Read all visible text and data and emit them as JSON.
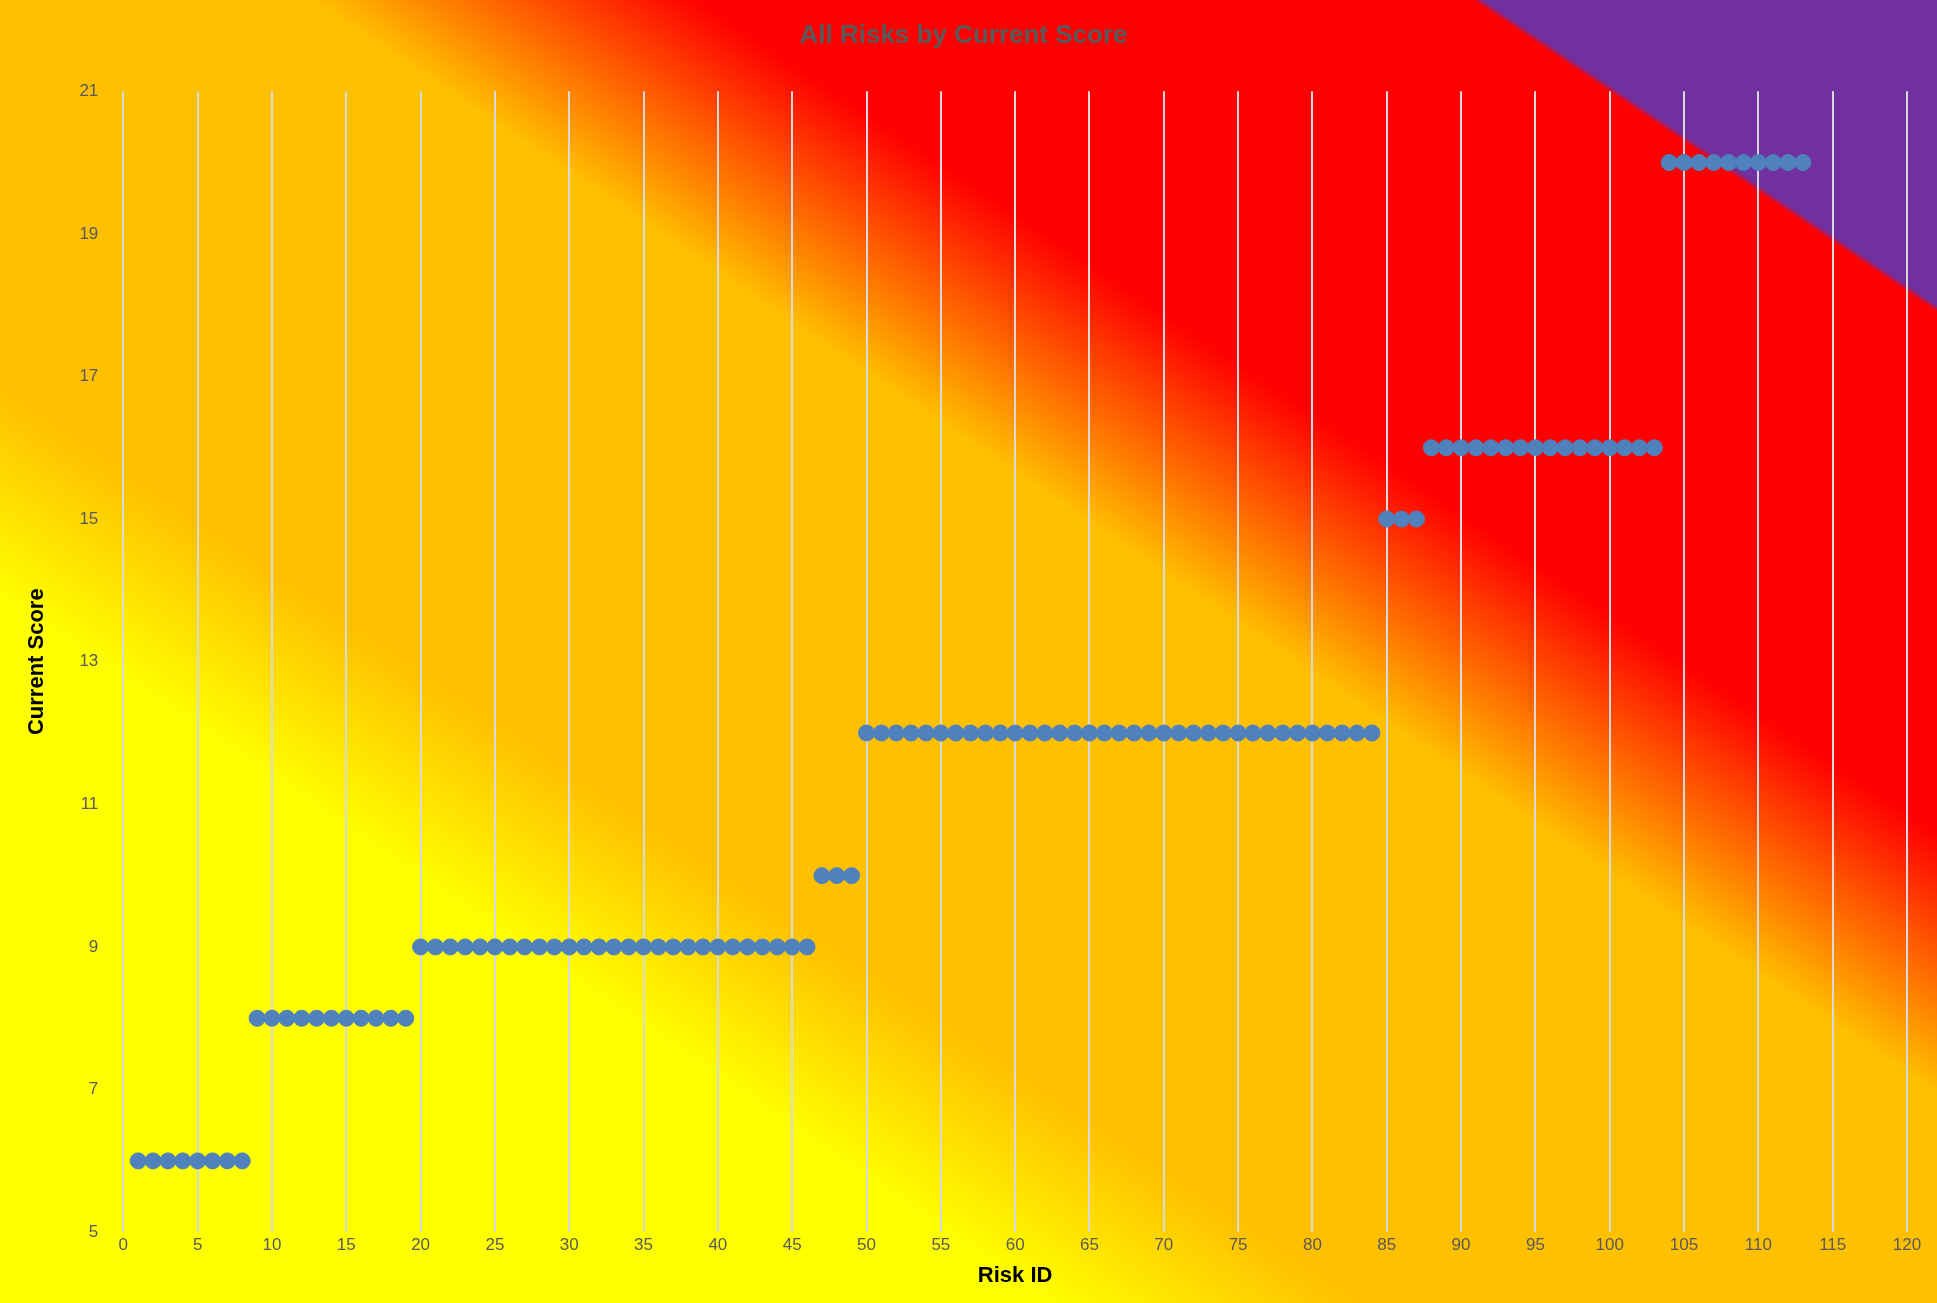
{
  "chart_data": {
    "type": "scatter",
    "title": "All Risks by Current Score",
    "xlabel": "Risk ID",
    "ylabel": "Current Score",
    "x": [
      1,
      2,
      3,
      4,
      5,
      6,
      7,
      8,
      9,
      10,
      11,
      12,
      13,
      14,
      15,
      16,
      17,
      18,
      19,
      20,
      21,
      22,
      23,
      24,
      25,
      26,
      27,
      28,
      29,
      30,
      31,
      32,
      33,
      34,
      35,
      36,
      37,
      38,
      39,
      40,
      41,
      42,
      43,
      44,
      45,
      46,
      47,
      48,
      49,
      50,
      51,
      52,
      53,
      54,
      55,
      56,
      57,
      58,
      59,
      60,
      61,
      62,
      63,
      64,
      65,
      66,
      67,
      68,
      69,
      70,
      71,
      72,
      73,
      74,
      75,
      76,
      77,
      78,
      79,
      80,
      81,
      82,
      83,
      84,
      85,
      86,
      87,
      88,
      89,
      90,
      91,
      92,
      93,
      94,
      95,
      96,
      97,
      98,
      99,
      100,
      101,
      102,
      103,
      104,
      105,
      106,
      107,
      108,
      109,
      110,
      111,
      112,
      113
    ],
    "series": [
      {
        "color": "#4f81bd",
        "values": [
          6,
          6,
          6,
          6,
          6,
          6,
          6,
          6,
          8,
          8,
          8,
          8,
          8,
          8,
          8,
          8,
          8,
          8,
          8,
          9,
          9,
          9,
          9,
          9,
          9,
          9,
          9,
          9,
          9,
          9,
          9,
          9,
          9,
          9,
          9,
          9,
          9,
          9,
          9,
          9,
          9,
          9,
          9,
          9,
          9,
          9,
          10,
          10,
          10,
          12,
          12,
          12,
          12,
          12,
          12,
          12,
          12,
          12,
          12,
          12,
          12,
          12,
          12,
          12,
          12,
          12,
          12,
          12,
          12,
          12,
          12,
          12,
          12,
          12,
          12,
          12,
          12,
          12,
          12,
          12,
          12,
          12,
          12,
          12,
          15,
          15,
          15,
          16,
          16,
          16,
          16,
          16,
          16,
          16,
          16,
          16,
          16,
          16,
          16,
          16,
          16,
          16,
          16,
          20,
          20,
          20,
          20,
          20,
          20,
          20,
          20,
          20,
          20
        ]
      }
    ],
    "xlim": [
      0,
      120
    ],
    "xticks": [
      0,
      5,
      10,
      15,
      20,
      25,
      30,
      35,
      40,
      45,
      50,
      55,
      60,
      65,
      70,
      75,
      80,
      85,
      90,
      95,
      100,
      105,
      110,
      115,
      120
    ],
    "ylim": [
      5,
      21
    ],
    "yticks": [
      5,
      7,
      9,
      11,
      13,
      15,
      17,
      19,
      21
    ],
    "grid": "x",
    "legend": false,
    "marker": "circle"
  }
}
